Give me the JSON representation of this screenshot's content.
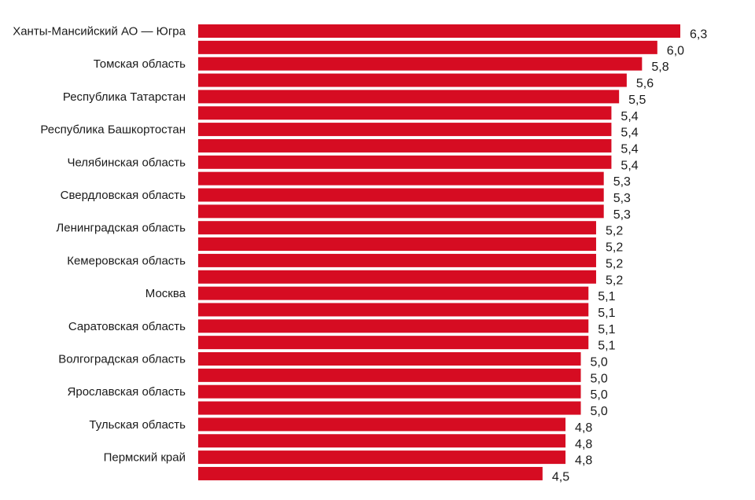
{
  "chart_data": {
    "type": "bar",
    "orientation": "horizontal",
    "title": "",
    "xlabel": "",
    "ylabel": "",
    "grid": false,
    "legend": "none",
    "bar_color": "#d60c22",
    "xlim": [
      0,
      6.3
    ],
    "categories": [
      "Ханты-Мансийский АО — Югра",
      "",
      "Томская область",
      "",
      "Республика Татарстан",
      "",
      "Республика Башкортостан",
      "",
      "Челябинская область",
      "",
      "Свердловская область",
      "",
      "Ленинградская область",
      "",
      "Кемеровская область",
      "",
      "Москва",
      "",
      "Саратовская область",
      "",
      "Волгоградская область",
      "",
      "Ярославская область",
      "",
      "Тульская область",
      "",
      "Пермский край",
      ""
    ],
    "values": [
      6.3,
      6.0,
      5.8,
      5.6,
      5.5,
      5.4,
      5.4,
      5.4,
      5.4,
      5.3,
      5.3,
      5.3,
      5.2,
      5.2,
      5.2,
      5.2,
      5.1,
      5.1,
      5.1,
      5.1,
      5.0,
      5.0,
      5.0,
      5.0,
      4.8,
      4.8,
      4.8,
      4.5
    ],
    "value_labels": [
      "6,3",
      "6,0",
      "5,8",
      "5,6",
      "5,5",
      "5,4",
      "5,4",
      "5,4",
      "5,4",
      "5,3",
      "5,3",
      "5,3",
      "5,2",
      "5,2",
      "5,2",
      "5,2",
      "5,1",
      "5,1",
      "5,1",
      "5,1",
      "5,0",
      "5,0",
      "5,0",
      "5,0",
      "4,8",
      "4,8",
      "4,8",
      "4,5"
    ]
  }
}
